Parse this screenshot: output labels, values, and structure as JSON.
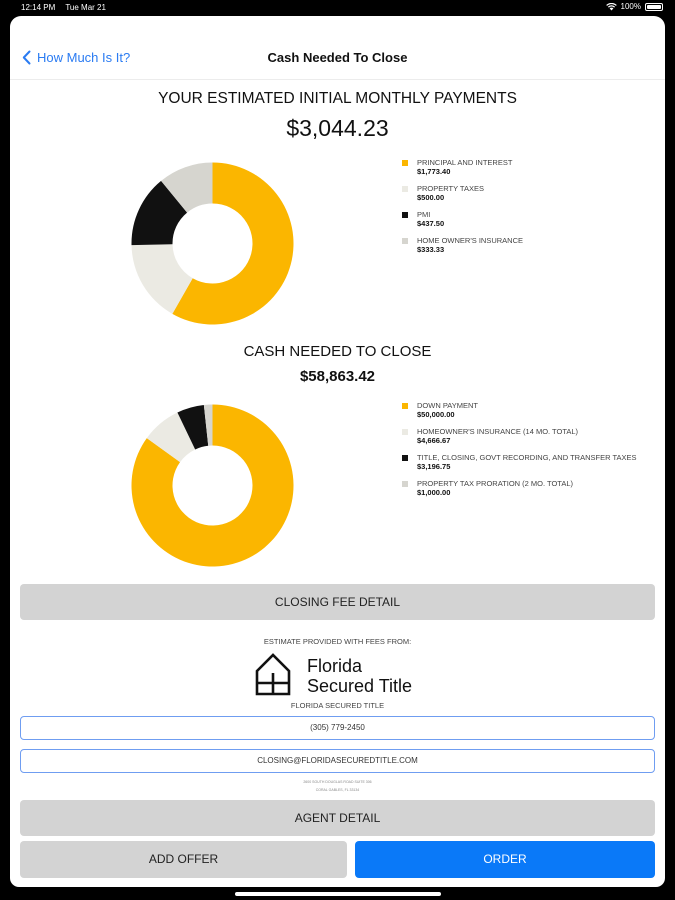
{
  "status": {
    "time": "12:14 PM",
    "date": "Tue Mar 21",
    "battery": "100%"
  },
  "nav": {
    "back_label": "How Much Is It?",
    "title": "Cash Needed To Close"
  },
  "monthly": {
    "heading": "YOUR ESTIMATED INITIAL MONTHLY PAYMENTS",
    "total": "$3,044.23",
    "items": [
      {
        "label": "PRINCIPAL AND INTEREST",
        "value": "$1,773.40",
        "color": "#fbb600"
      },
      {
        "label": "PROPERTY TAXES",
        "value": "$500.00",
        "color": "#ebeae3"
      },
      {
        "label": "PMI",
        "value": "$437.50",
        "color": "#111111"
      },
      {
        "label": "HOME OWNER'S INSURANCE",
        "value": "$333.33",
        "color": "#d6d5cf"
      }
    ]
  },
  "cash": {
    "heading": "CASH NEEDED TO CLOSE",
    "total": "$58,863.42",
    "items": [
      {
        "label": "DOWN PAYMENT",
        "value": "$50,000.00",
        "color": "#fbb600"
      },
      {
        "label": "HOMEOWNER'S INSURANCE (14 MO. TOTAL)",
        "value": "$4,666.67",
        "color": "#ebeae3"
      },
      {
        "label": "TITLE, CLOSING, GOVT RECORDING, AND TRANSFER TAXES",
        "value": "$3,196.75",
        "color": "#111111"
      },
      {
        "label": "PROPERTY TAX PRORATION (2 MO. TOTAL)",
        "value": "$1,000.00",
        "color": "#d6d5cf"
      }
    ]
  },
  "closing_fee_button": "CLOSING FEE DETAIL",
  "provider": {
    "intro": "ESTIMATE PROVIDED WITH FEES FROM:",
    "logo_line1": "Florida",
    "logo_line2": "Secured Title",
    "name": "FLORIDA SECURED TITLE",
    "phone": "(305) 779-2450",
    "email": "CLOSING@FLORIDASECUREDTITLE.COM",
    "address1": "2600 SOUTH DOUGLAS ROAD SUITE 306",
    "address2": "CORAL GABLES, FL 33134"
  },
  "agent_button": "AGENT DETAIL",
  "add_offer_button": "ADD OFFER",
  "order_button": "ORDER",
  "accent_color": "#0a79f8"
}
